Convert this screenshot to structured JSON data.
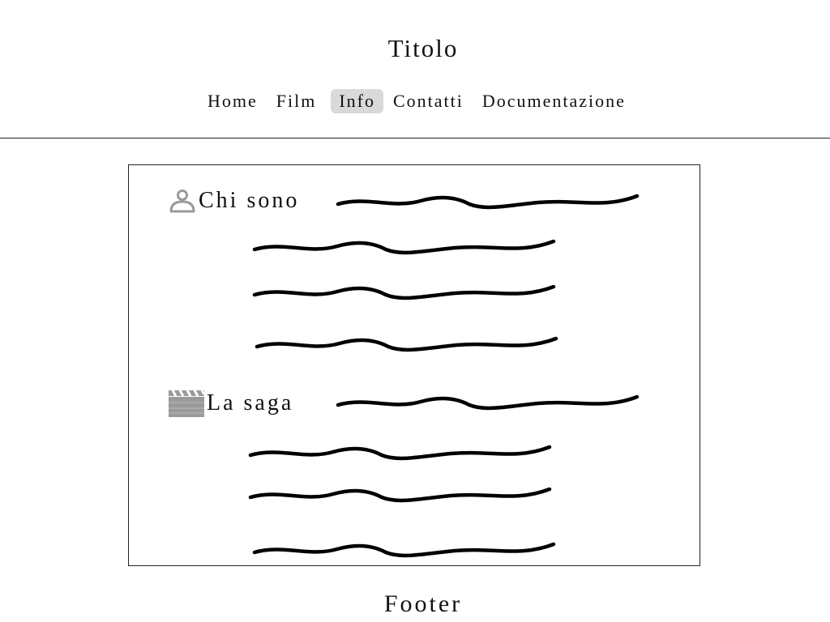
{
  "header": {
    "title": "Titolo"
  },
  "nav": {
    "items": [
      {
        "label": "Home",
        "active": false
      },
      {
        "label": "Film",
        "active": false
      },
      {
        "label": "Info",
        "active": true
      },
      {
        "label": "Contatti",
        "active": false
      },
      {
        "label": "Documentazione",
        "active": false
      }
    ],
    "active_bg": "#d9d9d9"
  },
  "main": {
    "sections": [
      {
        "heading": "Chi sono",
        "icon": "user-icon",
        "placeholder_lines": 4
      },
      {
        "heading": "La saga",
        "icon": "clapperboard-icon",
        "placeholder_lines": 4
      }
    ]
  },
  "footer": {
    "text": "Footer"
  },
  "colors": {
    "icon_gray": "#9a9a9a",
    "text": "#111111",
    "border": "#222222"
  }
}
